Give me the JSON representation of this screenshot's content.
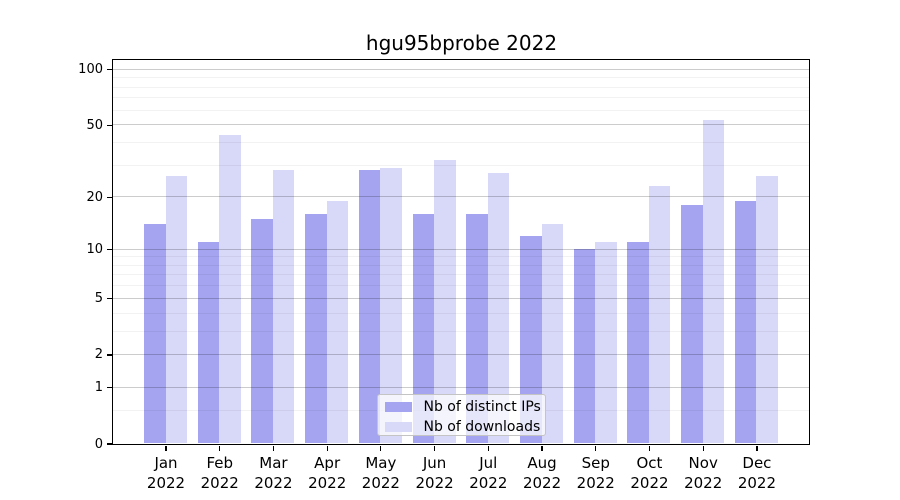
{
  "title": "hgu95bprobe 2022",
  "chart_data": {
    "type": "bar",
    "title": "hgu95bprobe 2022",
    "categories": [
      "Jan",
      "Feb",
      "Mar",
      "Apr",
      "May",
      "Jun",
      "Jul",
      "Aug",
      "Sep",
      "Oct",
      "Nov",
      "Dec"
    ],
    "x_year_label": "2022",
    "series": [
      {
        "name": "Nb of distinct IPs",
        "color": "#a4a4f0",
        "values": [
          14,
          11,
          15,
          16,
          28,
          16,
          16,
          12,
          10,
          11,
          18,
          19
        ]
      },
      {
        "name": "Nb of downloads",
        "color": "#d8d8f8",
        "values": [
          26,
          44,
          28,
          19,
          29,
          32,
          27,
          14,
          11,
          23,
          53,
          26
        ]
      }
    ],
    "y_axis": {
      "scale": "log1p",
      "major_ticks": [
        0,
        1,
        2,
        5,
        10,
        20,
        50,
        100
      ],
      "minor_ticks": [
        0.5,
        3,
        4,
        6,
        7,
        8,
        9,
        30,
        40,
        60,
        70,
        80,
        90
      ],
      "ylim": [
        0,
        113
      ]
    },
    "legend": {
      "position": "bottom-center-inside",
      "entries": [
        "Nb of distinct IPs",
        "Nb of downloads"
      ]
    },
    "grid": true,
    "colors": {
      "major_grid": "rgba(0,0,0,0.20)",
      "minor_grid": "rgba(0,0,0,0.05)",
      "spine": "#000000",
      "legend_border": "#c4c4c4",
      "legend_bg": "rgba(255,255,255,0.72)"
    }
  }
}
